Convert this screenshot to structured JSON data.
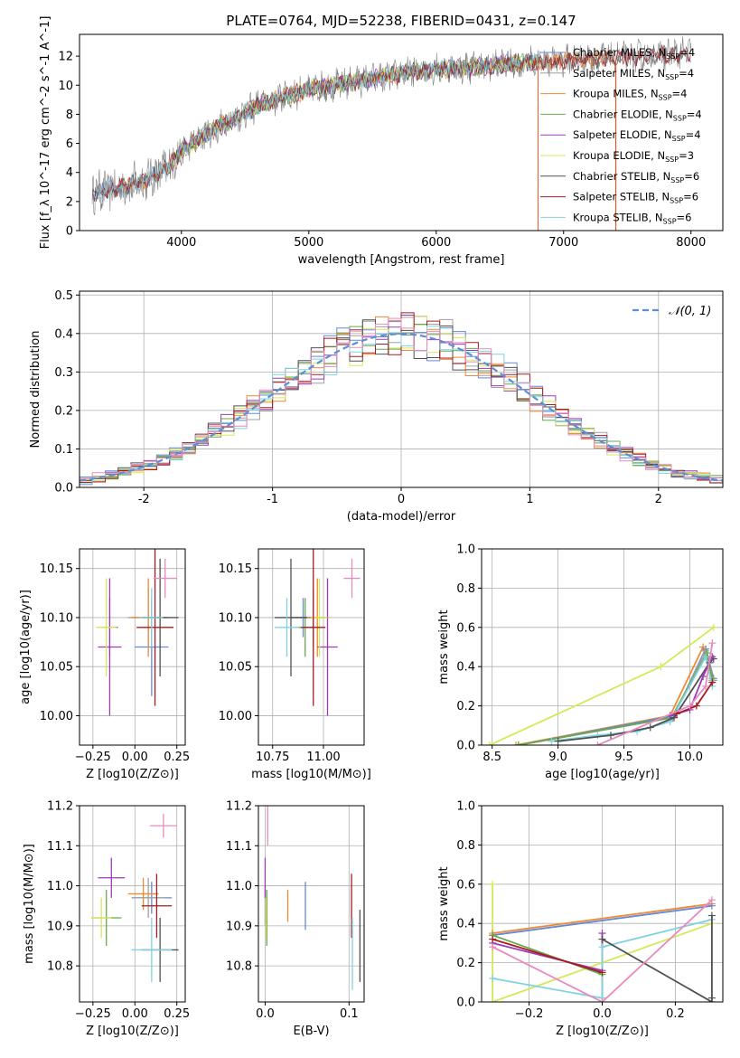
{
  "figure": {
    "title": "PLATE=0764, MJD=52238, FIBERID=0431, z=0.147"
  },
  "palette": {
    "Chabrier MILES": "#6488d8",
    "Salpeter MILES": "#a0a0a0",
    "Kroupa MILES": "#ef8a35",
    "Chabrier ELODIE": "#6aa84f",
    "Salpeter ELODIE": "#9c3bb5",
    "Kroupa ELODIE": "#d6e85a",
    "Chabrier STELIB": "#505050",
    "Salpeter STELIB": "#a81b22",
    "Kroupa STELIB": "#7fd3e0",
    "pink": "#e88abf",
    "data": "#808080",
    "normal": "#5b8fd6"
  },
  "chart_data": [
    {
      "id": "spectrum",
      "type": "line",
      "title": "PLATE=0764, MJD=52238, FIBERID=0431, z=0.147",
      "xlabel": "wavelength [Angstrom, rest frame]",
      "ylabel": "Flux [f_λ 10^-17 erg cm^-2 s^-1 A^-1]",
      "xlim": [
        3200,
        8250
      ],
      "ylim": [
        0,
        13.5
      ],
      "xticks": [
        4000,
        5000,
        6000,
        7000,
        8000
      ],
      "yticks": [
        0,
        2,
        4,
        6,
        8,
        10,
        12
      ],
      "grid": false,
      "legend_position": "right",
      "continuum": {
        "x": [
          3300,
          3500,
          3700,
          3900,
          4000,
          4200,
          4400,
          4600,
          4800,
          5000,
          5200,
          5400,
          5600,
          5800,
          6000,
          6200,
          6400,
          6600,
          6800,
          7000,
          7200,
          7400,
          7600,
          7800,
          8000
        ],
        "y": [
          2.6,
          2.9,
          3.4,
          4.4,
          5.5,
          6.7,
          7.6,
          8.6,
          9.2,
          9.7,
          10.0,
          10.3,
          10.6,
          10.9,
          11.1,
          11.2,
          11.3,
          11.5,
          11.6,
          11.7,
          11.8,
          11.9,
          12.0,
          12.1,
          12.2
        ]
      },
      "series": [
        {
          "name": "Chabrier MILES, N_SSP=4",
          "legend": [
            "Chabrier MILES, N",
            "SSP",
            "=4"
          ]
        },
        {
          "name": "Salpeter MILES, N_SSP=4",
          "legend": [
            "Salpeter MILES, N",
            "SSP",
            "=4"
          ]
        },
        {
          "name": "Kroupa MILES, N_SSP=4",
          "legend": [
            "Kroupa MILES, N",
            "SSP",
            "=4"
          ]
        },
        {
          "name": "Chabrier ELODIE, N_SSP=4",
          "legend": [
            "Chabrier ELODIE, N",
            "SSP",
            "=4"
          ]
        },
        {
          "name": "Salpeter ELODIE, N_SSP=4",
          "legend": [
            "Salpeter ELODIE, N",
            "SSP",
            "=4"
          ]
        },
        {
          "name": "Kroupa ELODIE, N_SSP=3",
          "legend": [
            "Kroupa ELODIE, N",
            "SSP",
            "=3"
          ]
        },
        {
          "name": "Chabrier STELIB, N_SSP=6",
          "legend": [
            "Chabrier STELIB, N",
            "SSP",
            "=6"
          ]
        },
        {
          "name": "Salpeter STELIB, N_SSP=6",
          "legend": [
            "Salpeter STELIB, N",
            "SSP",
            "=6"
          ]
        },
        {
          "name": "Kroupa STELIB, N_SSP=6",
          "legend": [
            "Kroupa STELIB, N",
            "SSP",
            "=6"
          ]
        }
      ]
    },
    {
      "id": "residuals",
      "type": "bar",
      "xlabel": "(data-model)/error",
      "ylabel": "Normed distribution",
      "xlim": [
        -2.5,
        2.5
      ],
      "ylim": [
        0,
        0.51
      ],
      "xticks": [
        -2,
        -1,
        0,
        1,
        2
      ],
      "yticks": [
        0.0,
        0.1,
        0.2,
        0.3,
        0.4,
        0.5
      ],
      "grid": true,
      "legend_position": "top-right",
      "legend_label": "𝒩(0, 1)",
      "bin_width": 0.1
    },
    {
      "id": "age-vs-Z",
      "type": "scatter",
      "xlabel": "Z [log10(Z/Z⊙)]",
      "ylabel": "age [log10(age/yr)]",
      "xlim": [
        -0.33,
        0.3
      ],
      "ylim": [
        9.97,
        10.17
      ],
      "xticks": [
        -0.25,
        0.0,
        0.25
      ],
      "yticks": [
        10.0,
        10.05,
        10.1,
        10.15
      ],
      "grid": true,
      "points": [
        {
          "model": "Chabrier MILES",
          "x": 0.1,
          "y": 10.07,
          "xerr": 0.1,
          "yerr": 0.05
        },
        {
          "model": "Salpeter MILES",
          "x": 0.08,
          "y": 10.1,
          "xerr": 0.12,
          "yerr": 0.03
        },
        {
          "model": "Kroupa MILES",
          "x": 0.08,
          "y": 10.1,
          "xerr": 0.1,
          "yerr": 0.04
        },
        {
          "model": "Chabrier ELODIE",
          "x": -0.15,
          "y": 10.09,
          "xerr": 0.05,
          "yerr": 0.03
        },
        {
          "model": "Salpeter ELODIE",
          "x": -0.15,
          "y": 10.07,
          "xerr": 0.07,
          "yerr": 0.07
        },
        {
          "model": "Kroupa ELODIE",
          "x": -0.17,
          "y": 10.09,
          "xerr": 0.06,
          "yerr": 0.05
        },
        {
          "model": "Chabrier STELIB",
          "x": 0.15,
          "y": 10.1,
          "xerr": 0.11,
          "yerr": 0.06
        },
        {
          "model": "Salpeter STELIB",
          "x": 0.12,
          "y": 10.09,
          "xerr": 0.11,
          "yerr": 0.08
        },
        {
          "model": "Kroupa STELIB",
          "x": 0.1,
          "y": 10.1,
          "xerr": 0.07,
          "yerr": 0.03
        },
        {
          "model": "pink",
          "x": 0.18,
          "y": 10.14,
          "xerr": 0.07,
          "yerr": 0.02
        }
      ]
    },
    {
      "id": "age-vs-mass",
      "type": "scatter",
      "xlabel": "mass [log10(M/M⊙)]",
      "ylabel": "",
      "xlim": [
        10.68,
        11.2
      ],
      "ylim": [
        9.97,
        10.17
      ],
      "xticks": [
        10.75,
        11.0
      ],
      "yticks": [
        10.0,
        10.05,
        10.1,
        10.15
      ],
      "grid": true,
      "points": [
        {
          "model": "Chabrier MILES",
          "x": 10.9,
          "y": 10.1,
          "xerr": 0.06,
          "yerr": 0.02
        },
        {
          "model": "Salpeter MILES",
          "x": 10.95,
          "y": 10.1,
          "xerr": 0.06,
          "yerr": 0.03
        },
        {
          "model": "Kroupa MILES",
          "x": 10.97,
          "y": 10.1,
          "xerr": 0.05,
          "yerr": 0.04
        },
        {
          "model": "Chabrier ELODIE",
          "x": 10.91,
          "y": 10.09,
          "xerr": 0.05,
          "yerr": 0.03
        },
        {
          "model": "Salpeter ELODIE",
          "x": 11.02,
          "y": 10.07,
          "xerr": 0.05,
          "yerr": 0.07
        },
        {
          "model": "Kroupa ELODIE",
          "x": 10.98,
          "y": 10.1,
          "xerr": 0.04,
          "yerr": 0.04
        },
        {
          "model": "Chabrier STELIB",
          "x": 10.84,
          "y": 10.1,
          "xerr": 0.08,
          "yerr": 0.06
        },
        {
          "model": "Salpeter STELIB",
          "x": 10.95,
          "y": 10.09,
          "xerr": 0.06,
          "yerr": 0.08
        },
        {
          "model": "Kroupa STELIB",
          "x": 10.82,
          "y": 10.09,
          "xerr": 0.06,
          "yerr": 0.03
        },
        {
          "model": "pink",
          "x": 11.14,
          "y": 10.14,
          "xerr": 0.04,
          "yerr": 0.02
        }
      ]
    },
    {
      "id": "weight-vs-age",
      "type": "line",
      "xlabel": "age [log10(age/yr)]",
      "ylabel": "mass weight",
      "xlim": [
        8.42,
        10.25
      ],
      "ylim": [
        0,
        1
      ],
      "xticks": [
        8.5,
        9.0,
        9.5,
        10.0
      ],
      "yticks": [
        0.0,
        0.2,
        0.4,
        0.6,
        0.8,
        1.0
      ],
      "grid": true,
      "series": [
        {
          "model": "Kroupa ELODIE",
          "x": [
            8.48,
            9.78,
            10.18
          ],
          "y": [
            0.0,
            0.4,
            0.6
          ]
        },
        {
          "model": "Kroupa MILES",
          "x": [
            8.68,
            9.85,
            10.1,
            10.17
          ],
          "y": [
            0.0,
            0.15,
            0.5,
            0.33
          ]
        },
        {
          "model": "Chabrier MILES",
          "x": [
            8.7,
            9.88,
            10.12,
            10.18
          ],
          "y": [
            0.0,
            0.15,
            0.49,
            0.34
          ]
        },
        {
          "model": "Salpeter MILES",
          "x": [
            8.7,
            9.87,
            10.12,
            10.18
          ],
          "y": [
            0.0,
            0.14,
            0.48,
            0.33
          ]
        },
        {
          "model": "Chabrier ELODIE",
          "x": [
            8.7,
            9.86,
            10.13,
            10.17
          ],
          "y": [
            0.0,
            0.14,
            0.47,
            0.34
          ]
        },
        {
          "model": "Kroupa STELIB",
          "x": [
            8.95,
            9.3,
            9.6,
            9.85,
            10.12,
            10.17
          ],
          "y": [
            0.02,
            0.05,
            0.07,
            0.12,
            0.45,
            0.3
          ]
        },
        {
          "model": "Chabrier STELIB",
          "x": [
            9.0,
            9.4,
            9.7,
            9.88,
            10.15,
            10.18
          ],
          "y": [
            0.02,
            0.05,
            0.09,
            0.14,
            0.42,
            0.44
          ]
        },
        {
          "model": "Salpeter ELODIE",
          "x": [
            9.85,
            10.0,
            10.1,
            10.17
          ],
          "y": [
            0.15,
            0.18,
            0.35,
            0.45
          ]
        },
        {
          "model": "Salpeter STELIB",
          "x": [
            9.9,
            10.05,
            10.17
          ],
          "y": [
            0.16,
            0.2,
            0.32
          ]
        },
        {
          "model": "pink",
          "x": [
            9.3,
            10.0,
            10.12,
            10.17
          ],
          "y": [
            0.0,
            0.2,
            0.3,
            0.52
          ]
        }
      ]
    },
    {
      "id": "mass-vs-Z",
      "type": "scatter",
      "xlabel": "Z [log10(Z/Z⊙)]",
      "ylabel": "mass [log10(M/M⊙)]",
      "xlim": [
        -0.33,
        0.3
      ],
      "ylim": [
        10.71,
        11.2
      ],
      "xticks": [
        -0.25,
        0.0,
        0.25
      ],
      "yticks": [
        10.8,
        10.9,
        11.0,
        11.1,
        11.2
      ],
      "grid": true,
      "points": [
        {
          "model": "Chabrier MILES",
          "x": 0.1,
          "y": 10.97,
          "xerr": 0.12,
          "yerr": 0.04
        },
        {
          "model": "Salpeter MILES",
          "x": 0.08,
          "y": 10.97,
          "xerr": 0.1,
          "yerr": 0.05
        },
        {
          "model": "Kroupa MILES",
          "x": 0.05,
          "y": 10.98,
          "xerr": 0.09,
          "yerr": 0.04
        },
        {
          "model": "Chabrier ELODIE",
          "x": -0.17,
          "y": 10.92,
          "xerr": 0.09,
          "yerr": 0.07
        },
        {
          "model": "Salpeter ELODIE",
          "x": -0.14,
          "y": 11.02,
          "xerr": 0.08,
          "yerr": 0.05
        },
        {
          "model": "Kroupa ELODIE",
          "x": -0.2,
          "y": 10.92,
          "xerr": 0.06,
          "yerr": 0.05
        },
        {
          "model": "Chabrier STELIB",
          "x": 0.15,
          "y": 10.84,
          "xerr": 0.11,
          "yerr": 0.08
        },
        {
          "model": "Salpeter STELIB",
          "x": 0.13,
          "y": 10.95,
          "xerr": 0.09,
          "yerr": 0.08
        },
        {
          "model": "Kroupa STELIB",
          "x": 0.1,
          "y": 10.84,
          "xerr": 0.12,
          "yerr": 0.08
        },
        {
          "model": "pink",
          "x": 0.17,
          "y": 11.15,
          "xerr": 0.08,
          "yerr": 0.03
        }
      ]
    },
    {
      "id": "mass-vs-ebv",
      "type": "scatter",
      "xlabel": "E(B-V)",
      "ylabel": "",
      "xlim": [
        -0.008,
        0.118
      ],
      "ylim": [
        10.71,
        11.2
      ],
      "xticks": [
        0.0,
        0.1
      ],
      "yticks": [
        10.8,
        10.9,
        11.0,
        11.1,
        11.2
      ],
      "grid": true,
      "points": [
        {
          "model": "Chabrier MILES",
          "x": 0.048,
          "y": 10.95,
          "yerr": 0.06
        },
        {
          "model": "Salpeter MILES",
          "x": 0.0,
          "y": 10.95,
          "yerr": 0.05
        },
        {
          "model": "Kroupa MILES",
          "x": 0.027,
          "y": 10.95,
          "yerr": 0.04
        },
        {
          "model": "Chabrier ELODIE",
          "x": 0.002,
          "y": 10.92,
          "yerr": 0.07
        },
        {
          "model": "Salpeter ELODIE",
          "x": 0.0,
          "y": 11.02,
          "yerr": 0.05
        },
        {
          "model": "Kroupa ELODIE",
          "x": 0.001,
          "y": 10.92,
          "yerr": 0.05
        },
        {
          "model": "Chabrier STELIB",
          "x": 0.113,
          "y": 10.85,
          "yerr": 0.09
        },
        {
          "model": "Salpeter STELIB",
          "x": 0.103,
          "y": 10.95,
          "yerr": 0.08
        },
        {
          "model": "Kroupa STELIB",
          "x": 0.104,
          "y": 10.83,
          "yerr": 0.09
        },
        {
          "model": "pink",
          "x": 0.003,
          "y": 11.15,
          "yerr": 0.05
        }
      ]
    },
    {
      "id": "weight-vs-Z",
      "type": "line",
      "xlabel": "Z [log10(Z/Z⊙)]",
      "ylabel": "mass weight",
      "xlim": [
        -0.33,
        0.33
      ],
      "ylim": [
        0,
        1
      ],
      "xticks": [
        -0.2,
        0.0,
        0.2
      ],
      "yticks": [
        0.0,
        0.2,
        0.4,
        0.6,
        0.8,
        1.0
      ],
      "grid": true,
      "series": [
        {
          "model": "Kroupa ELODIE",
          "x": [
            -0.3,
            -0.3,
            0.3
          ],
          "y": [
            0.6,
            0.0,
            0.4
          ]
        },
        {
          "model": "Kroupa MILES",
          "x": [
            -0.3,
            0.3
          ],
          "y": [
            0.35,
            0.5
          ]
        },
        {
          "model": "Chabrier MILES",
          "x": [
            -0.3,
            0.3
          ],
          "y": [
            0.34,
            0.49
          ]
        },
        {
          "model": "Chabrier ELODIE",
          "x": [
            -0.3,
            0.0,
            0.0
          ],
          "y": [
            0.34,
            0.14,
            0.02
          ]
        },
        {
          "model": "Salpeter ELODIE",
          "x": [
            -0.3,
            0.0,
            0.0
          ],
          "y": [
            0.3,
            0.16,
            0.35
          ]
        },
        {
          "model": "Kroupa STELIB",
          "x": [
            -0.3,
            0.0,
            0.0,
            0.3
          ],
          "y": [
            0.12,
            0.02,
            0.28,
            0.42
          ]
        },
        {
          "model": "Chabrier STELIB",
          "x": [
            0.0,
            0.3,
            0.3,
            0.3
          ],
          "y": [
            0.32,
            0.0,
            0.44,
            0.02
          ]
        },
        {
          "model": "pink",
          "x": [
            -0.3,
            0.0,
            0.3
          ],
          "y": [
            0.28,
            0.0,
            0.52
          ]
        },
        {
          "model": "Salpeter STELIB",
          "x": [
            -0.3,
            0.0
          ],
          "y": [
            0.32,
            0.15
          ]
        }
      ]
    }
  ]
}
